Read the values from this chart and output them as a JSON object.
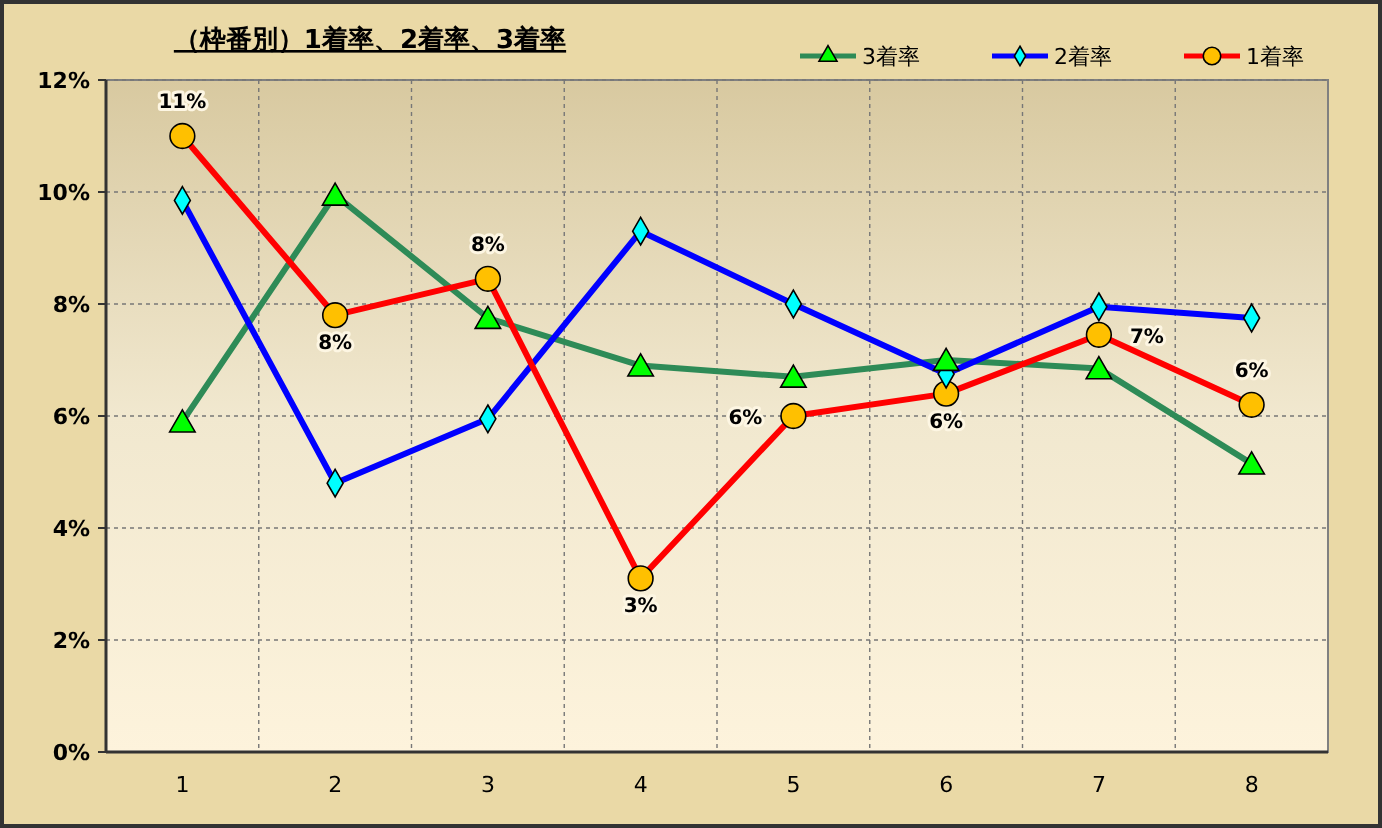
{
  "chart_data": {
    "type": "line",
    "title": "（枠番別）1着率、2着率、3着率",
    "categories": [
      "1",
      "2",
      "3",
      "4",
      "5",
      "6",
      "7",
      "8"
    ],
    "series": [
      {
        "name": "3着率",
        "color": "#2e8b57",
        "marker": "triangle",
        "values": [
          5.9,
          9.95,
          7.75,
          6.9,
          6.7,
          7.0,
          6.85,
          5.15
        ]
      },
      {
        "name": "2着率",
        "color": "#0000ff",
        "marker": "diamond",
        "values": [
          9.85,
          4.8,
          5.95,
          9.3,
          8.0,
          6.75,
          7.95,
          7.75
        ]
      },
      {
        "name": "1着率",
        "color": "#ff0000",
        "marker": "circle",
        "values": [
          11.0,
          7.8,
          8.45,
          3.1,
          6.0,
          6.4,
          7.45,
          6.2
        ],
        "value_labels": [
          "11%",
          "8%",
          "8%",
          "3%",
          "6%",
          "6%",
          "7%",
          "6%"
        ]
      }
    ],
    "ylim": [
      0,
      12
    ],
    "yticks": [
      {
        "value": 0,
        "label": "0%"
      },
      {
        "value": 2,
        "label": "2%"
      },
      {
        "value": 4,
        "label": "4%"
      },
      {
        "value": 6,
        "label": "6%"
      },
      {
        "value": 8,
        "label": "8%"
      },
      {
        "value": 10,
        "label": "10%"
      },
      {
        "value": 12,
        "label": "12%"
      }
    ],
    "grid": true,
    "legend": "top right",
    "line_style": "solid"
  }
}
